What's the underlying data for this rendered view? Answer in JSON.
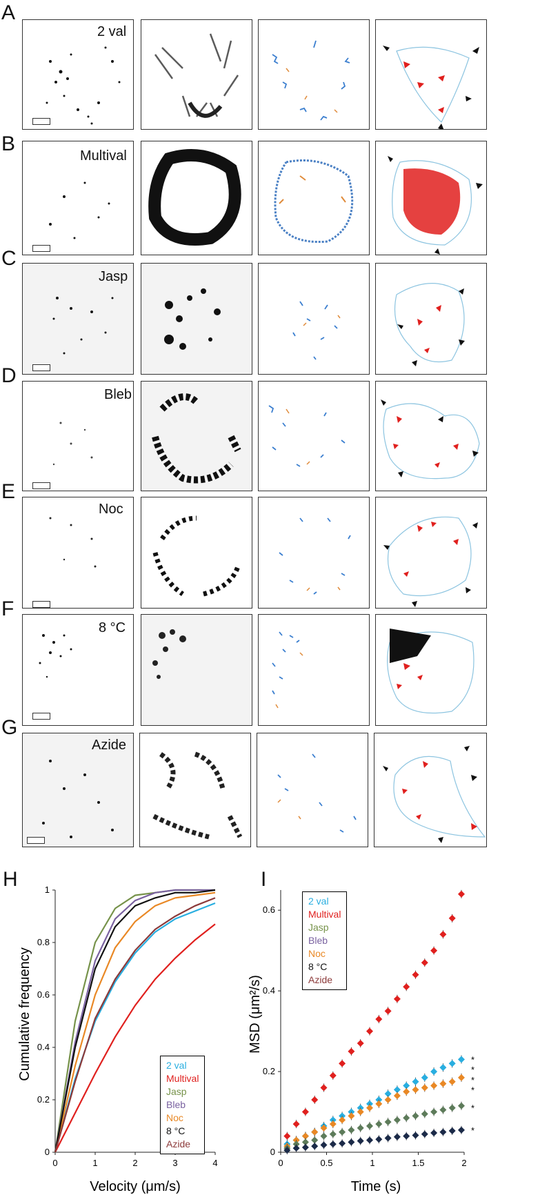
{
  "rows": [
    {
      "letter": "A",
      "condition": "2 val"
    },
    {
      "letter": "B",
      "condition": "Multival"
    },
    {
      "letter": "C",
      "condition": "Jasp"
    },
    {
      "letter": "D",
      "condition": "Bleb"
    },
    {
      "letter": "E",
      "condition": "Noc"
    },
    {
      "letter": "F",
      "condition": "8 °C"
    },
    {
      "letter": "G",
      "condition": "Azide"
    }
  ],
  "panel_H": {
    "letter": "H",
    "chart_data": {
      "type": "line",
      "xlabel": "Velocity (μm/s)",
      "ylabel": "Cumulative frequency",
      "xlim": [
        0,
        4
      ],
      "ylim": [
        0,
        1
      ],
      "xticks": [
        "0",
        "1",
        "2",
        "3",
        "4"
      ],
      "yticks": [
        "0",
        "0.2",
        "0.4",
        "0.6",
        "0.8",
        "1"
      ],
      "x": [
        0,
        0.5,
        1,
        1.5,
        2,
        2.5,
        3,
        3.5,
        4
      ],
      "series": [
        {
          "name": "2 val",
          "color": "#29aee0",
          "values": [
            0,
            0.28,
            0.5,
            0.65,
            0.76,
            0.84,
            0.89,
            0.92,
            0.95
          ]
        },
        {
          "name": "Multival",
          "color": "#e0201e",
          "values": [
            0,
            0.15,
            0.3,
            0.44,
            0.56,
            0.66,
            0.74,
            0.81,
            0.87
          ]
        },
        {
          "name": "Jasp",
          "color": "#76924a",
          "values": [
            0,
            0.5,
            0.8,
            0.93,
            0.98,
            0.99,
            1.0,
            1.0,
            1.0
          ]
        },
        {
          "name": "Bleb",
          "color": "#7a62a0",
          "values": [
            0,
            0.42,
            0.73,
            0.89,
            0.96,
            0.99,
            1.0,
            1.0,
            1.0
          ]
        },
        {
          "name": "Noc",
          "color": "#e98825",
          "values": [
            0,
            0.33,
            0.6,
            0.78,
            0.88,
            0.94,
            0.97,
            0.98,
            0.99
          ]
        },
        {
          "name": "8 °C",
          "color": "#111111",
          "values": [
            0,
            0.4,
            0.7,
            0.86,
            0.94,
            0.97,
            0.99,
            0.99,
            1.0
          ]
        },
        {
          "name": "Azide",
          "color": "#8c3a3a",
          "values": [
            0,
            0.27,
            0.51,
            0.66,
            0.77,
            0.85,
            0.9,
            0.94,
            0.97
          ]
        }
      ]
    }
  },
  "panel_I": {
    "letter": "I",
    "chart_data": {
      "type": "scatter",
      "xlabel": "Time (s)",
      "ylabel": "MSD (μm²/s)",
      "xlim": [
        0,
        2
      ],
      "ylim": [
        0,
        0.65
      ],
      "xticks": [
        "0",
        "0.5",
        "1",
        "1.5",
        "2"
      ],
      "yticks": [
        "0",
        "0.2",
        "0.4",
        "0.6"
      ],
      "x": [
        0.07,
        0.17,
        0.27,
        0.37,
        0.47,
        0.57,
        0.67,
        0.77,
        0.87,
        0.97,
        1.07,
        1.17,
        1.27,
        1.37,
        1.47,
        1.57,
        1.67,
        1.77,
        1.87,
        1.97
      ],
      "series": [
        {
          "name": "Multival",
          "color": "#e0201e",
          "values": [
            0.04,
            0.07,
            0.1,
            0.13,
            0.16,
            0.19,
            0.22,
            0.25,
            0.27,
            0.3,
            0.33,
            0.35,
            0.38,
            0.41,
            0.44,
            0.47,
            0.5,
            0.54,
            0.58,
            0.64
          ]
        },
        {
          "name": "2 val",
          "color": "#29aee0",
          "values": [
            0.02,
            0.03,
            0.04,
            0.05,
            0.065,
            0.08,
            0.09,
            0.1,
            0.11,
            0.12,
            0.13,
            0.145,
            0.155,
            0.165,
            0.175,
            0.185,
            0.2,
            0.21,
            0.22,
            0.23
          ]
        },
        {
          "name": "Noc",
          "color": "#e98825",
          "values": [
            0.015,
            0.03,
            0.04,
            0.05,
            0.06,
            0.07,
            0.08,
            0.09,
            0.1,
            0.11,
            0.12,
            0.13,
            0.14,
            0.15,
            0.155,
            0.16,
            0.165,
            0.17,
            0.175,
            0.185
          ]
        },
        {
          "name": "Jasp",
          "color": "#5d7b5a",
          "values": [
            0.01,
            0.02,
            0.025,
            0.03,
            0.04,
            0.045,
            0.05,
            0.055,
            0.06,
            0.065,
            0.07,
            0.075,
            0.08,
            0.085,
            0.09,
            0.095,
            0.1,
            0.105,
            0.11,
            0.115
          ]
        },
        {
          "name": "8 °C",
          "color": "#1b2a48",
          "values": [
            0.005,
            0.01,
            0.012,
            0.015,
            0.018,
            0.02,
            0.022,
            0.025,
            0.028,
            0.03,
            0.032,
            0.035,
            0.038,
            0.04,
            0.042,
            0.045,
            0.048,
            0.05,
            0.053,
            0.055
          ]
        }
      ],
      "significance": [
        "*",
        "*",
        "*",
        "*",
        "*",
        "*"
      ]
    }
  }
}
